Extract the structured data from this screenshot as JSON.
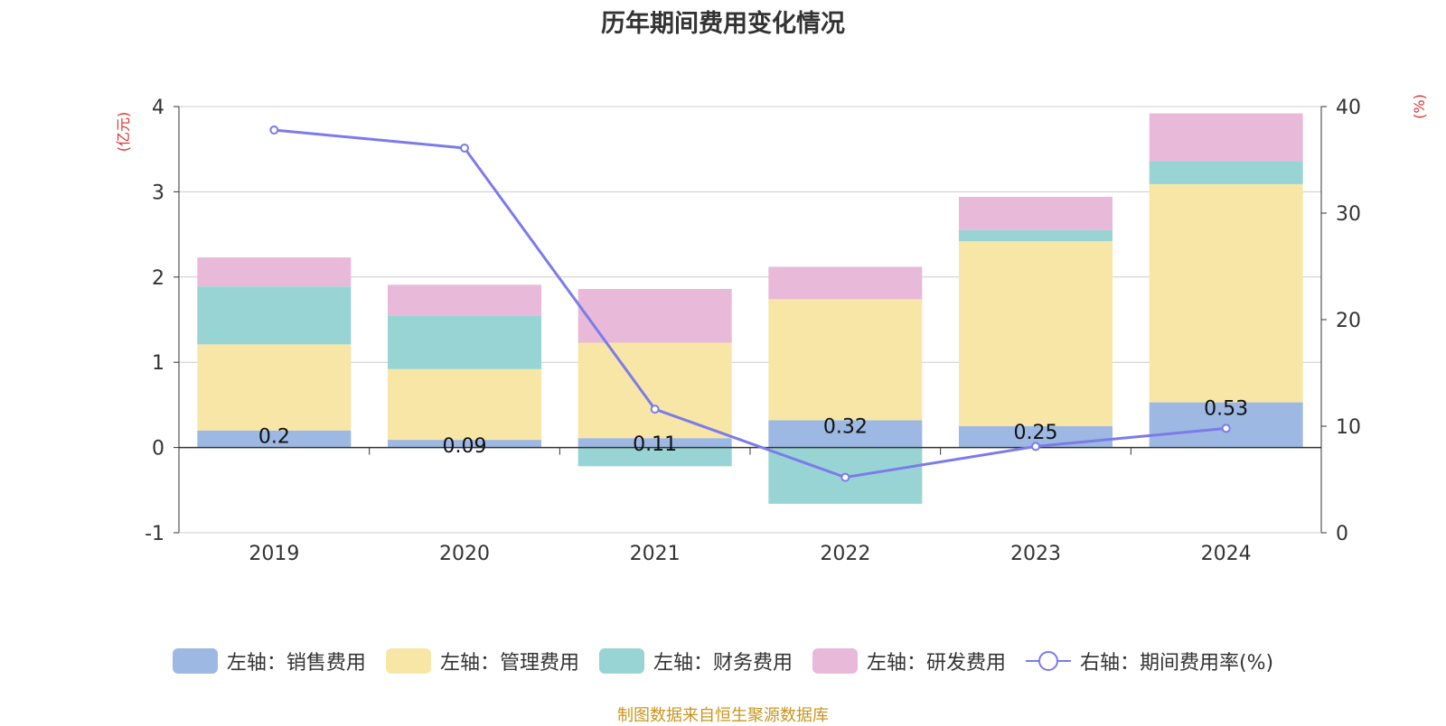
{
  "chart_data": {
    "type": "bar",
    "title": "历年期间费用变化情况",
    "categories": [
      "2019",
      "2020",
      "2021",
      "2022",
      "2023",
      "2024"
    ],
    "left_axis": {
      "label": "(亿元)",
      "range": [
        -1,
        4
      ],
      "ticks": [
        "-1",
        "0",
        "1",
        "2",
        "3",
        "4"
      ]
    },
    "right_axis": {
      "label": "(%)",
      "range": [
        0,
        40
      ],
      "ticks": [
        "0",
        "10",
        "20",
        "30",
        "40"
      ]
    },
    "series": [
      {
        "name": "左轴：销售费用",
        "axis": "left",
        "color": "#9db8e2",
        "values": [
          0.2,
          0.09,
          0.11,
          0.32,
          0.25,
          0.53
        ],
        "labels": [
          "0.2",
          "0.09",
          "0.11",
          "0.32",
          "0.25",
          "0.53"
        ]
      },
      {
        "name": "左轴：管理费用",
        "axis": "left",
        "color": "#f7e6a6",
        "values": [
          1.01,
          0.83,
          1.12,
          1.42,
          2.17,
          2.56
        ]
      },
      {
        "name": "左轴：财务费用",
        "axis": "left",
        "color": "#98d4d4",
        "values": [
          0.68,
          0.63,
          -0.22,
          -0.66,
          0.13,
          0.27
        ]
      },
      {
        "name": "左轴：研发费用",
        "axis": "left",
        "color": "#e8b9d8",
        "values": [
          0.34,
          0.36,
          0.63,
          0.38,
          0.39,
          0.56
        ]
      },
      {
        "name": "右轴：期间费用率(%)",
        "axis": "right",
        "type": "line",
        "color": "#7b7bea",
        "values": [
          37.8,
          36.1,
          11.6,
          5.2,
          8.1,
          9.8
        ]
      }
    ],
    "grid": true,
    "legend_position": "bottom"
  },
  "source": "制图数据来自恒生聚源数据库"
}
